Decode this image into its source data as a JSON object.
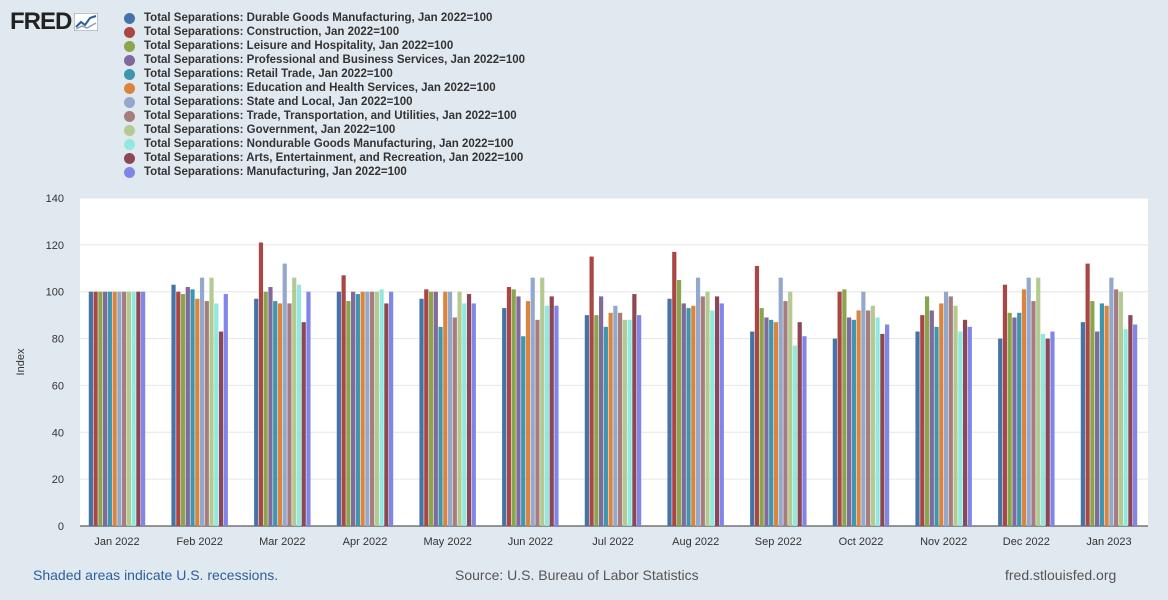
{
  "logo": {
    "text": "FRED"
  },
  "footer": {
    "recession_note": "Shaded areas indicate U.S. recessions.",
    "source": "Source: U.S. Bureau of Labor Statistics",
    "url": "fred.stlouisfed.org"
  },
  "chart_data": {
    "type": "bar",
    "title": "",
    "xlabel": "",
    "ylabel": "Index",
    "ylim": [
      0,
      140
    ],
    "yticks": [
      0,
      20,
      40,
      60,
      80,
      100,
      120,
      140
    ],
    "grid": true,
    "legend_position": "top-left",
    "categories": [
      "Jan 2022",
      "Feb 2022",
      "Mar 2022",
      "Apr 2022",
      "May 2022",
      "Jun 2022",
      "Jul 2022",
      "Aug 2022",
      "Sep 2022",
      "Oct 2022",
      "Nov 2022",
      "Dec 2022",
      "Jan 2023"
    ],
    "series": [
      {
        "name": "Total Separations: Durable Goods Manufacturing, Jan 2022=100",
        "color": "#4572a7",
        "values": [
          100,
          103,
          97,
          100,
          97,
          93,
          90,
          97,
          83,
          80,
          83,
          80,
          87
        ]
      },
      {
        "name": "Total Separations: Construction, Jan 2022=100",
        "color": "#aa4643",
        "values": [
          100,
          100,
          121,
          107,
          101,
          102,
          115,
          117,
          111,
          100,
          90,
          103,
          112
        ]
      },
      {
        "name": "Total Separations: Leisure and Hospitality, Jan 2022=100",
        "color": "#89a54e",
        "values": [
          100,
          99,
          100,
          96,
          100,
          101,
          90,
          105,
          93,
          101,
          98,
          91,
          96
        ]
      },
      {
        "name": "Total Separations: Professional and Business Services, Jan 2022=100",
        "color": "#80699b",
        "values": [
          100,
          102,
          102,
          100,
          100,
          98,
          98,
          95,
          89,
          89,
          92,
          89,
          83
        ]
      },
      {
        "name": "Total Separations: Retail Trade, Jan 2022=100",
        "color": "#3d96ae",
        "values": [
          100,
          101,
          96,
          99,
          85,
          81,
          85,
          93,
          88,
          88,
          85,
          91,
          95
        ]
      },
      {
        "name": "Total Separations: Education and Health Services, Jan 2022=100",
        "color": "#db843d",
        "values": [
          100,
          97,
          95,
          100,
          100,
          96,
          91,
          94,
          87,
          92,
          95,
          101,
          94
        ]
      },
      {
        "name": "Total Separations: State and Local, Jan 2022=100",
        "color": "#92a8cd",
        "values": [
          100,
          106,
          112,
          100,
          100,
          106,
          94,
          106,
          106,
          100,
          100,
          106,
          106
        ]
      },
      {
        "name": "Total Separations: Trade, Transportation, and Utilities, Jan 2022=100",
        "color": "#a47d7c",
        "values": [
          100,
          96,
          95,
          100,
          89,
          88,
          91,
          98,
          96,
          92,
          98,
          96,
          101
        ]
      },
      {
        "name": "Total Separations: Government, Jan 2022=100",
        "color": "#b5ca92",
        "values": [
          100,
          106,
          106,
          100,
          100,
          106,
          88,
          100,
          100,
          94,
          94,
          106,
          100
        ]
      },
      {
        "name": "Total Separations: Nondurable Goods Manufacturing, Jan 2022=100",
        "color": "#91e8e1",
        "values": [
          100,
          95,
          103,
          101,
          95,
          94,
          88,
          92,
          77,
          89,
          83,
          82,
          84
        ]
      },
      {
        "name": "Total Separations: Arts, Entertainment, and Recreation, Jan 2022=100",
        "color": "#8d4653",
        "values": [
          100,
          83,
          87,
          95,
          99,
          98,
          99,
          98,
          87,
          82,
          88,
          80,
          90
        ]
      },
      {
        "name": "Total Separations: Manufacturing, Jan 2022=100",
        "color": "#8085e8",
        "values": [
          100,
          99,
          100,
          100,
          95,
          94,
          90,
          95,
          81,
          86,
          85,
          83,
          86
        ]
      }
    ]
  }
}
